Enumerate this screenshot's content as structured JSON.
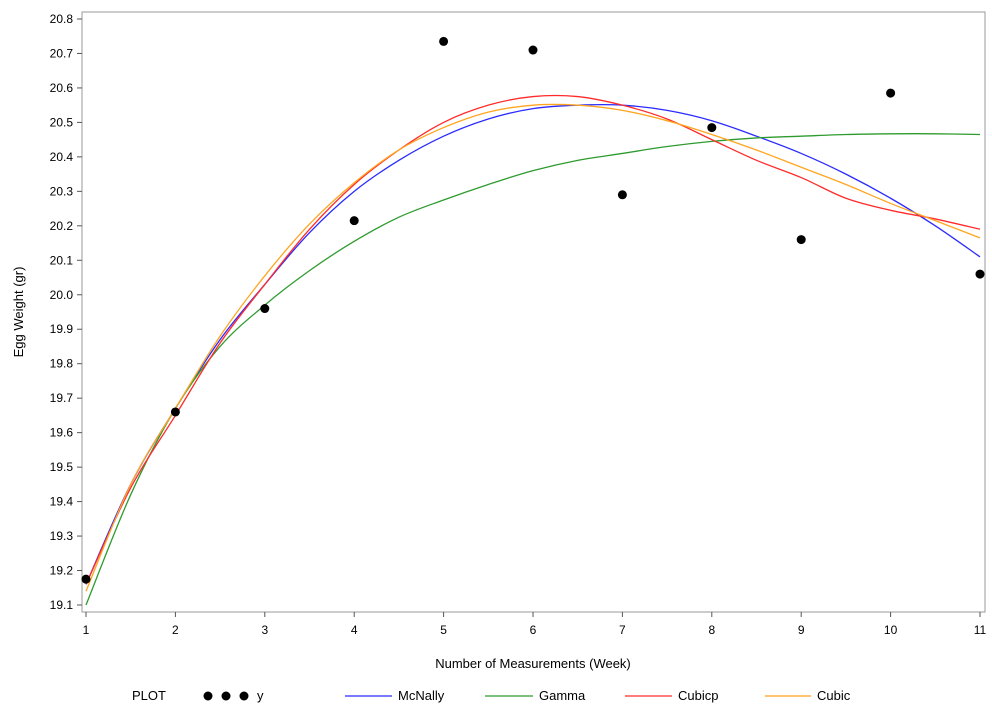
{
  "chart_data": {
    "type": "line",
    "xlabel": "Number of Measurements (Week)",
    "ylabel": "Egg Weight (gr)",
    "xlim": [
      1,
      11
    ],
    "ylim": [
      19.1,
      20.8
    ],
    "x_ticks": [
      "1",
      "2",
      "3",
      "4",
      "5",
      "6",
      "7",
      "8",
      "9",
      "10",
      "11"
    ],
    "y_ticks": [
      "19.1",
      "19.2",
      "19.3",
      "19.4",
      "19.5",
      "19.6",
      "19.7",
      "19.8",
      "19.9",
      "20.0",
      "20.1",
      "20.2",
      "20.3",
      "20.4",
      "20.5",
      "20.6",
      "20.7",
      "20.8"
    ],
    "grid": false,
    "legend": {
      "title": "PLOT",
      "placement": "bottom"
    },
    "points": {
      "name": "y",
      "color": "#000000",
      "x": [
        1,
        2,
        3,
        4,
        5,
        6,
        7,
        8,
        9,
        10,
        11
      ],
      "y": [
        19.175,
        19.66,
        19.96,
        20.215,
        20.735,
        20.71,
        20.29,
        20.485,
        20.16,
        20.585,
        20.06
      ]
    },
    "series": [
      {
        "name": "McNally",
        "color": "#2b2bff",
        "x": [
          1,
          1.5,
          2,
          2.5,
          3,
          3.5,
          4,
          4.5,
          5,
          5.5,
          6,
          6.5,
          7,
          7.5,
          8,
          8.5,
          9,
          9.5,
          10,
          10.5,
          11
        ],
        "y": [
          19.16,
          19.45,
          19.67,
          19.87,
          20.03,
          20.18,
          20.3,
          20.39,
          20.46,
          20.51,
          20.54,
          20.55,
          20.55,
          20.535,
          20.505,
          20.46,
          20.41,
          20.35,
          20.28,
          20.2,
          20.11
        ]
      },
      {
        "name": "Gamma",
        "color": "#2e9b2e",
        "x": [
          1,
          1.5,
          2,
          2.5,
          3,
          3.5,
          4,
          4.5,
          5,
          5.5,
          6,
          6.5,
          7,
          7.5,
          8,
          8.5,
          9,
          9.5,
          10,
          10.5,
          11
        ],
        "y": [
          19.1,
          19.42,
          19.67,
          19.85,
          19.97,
          20.07,
          20.155,
          20.225,
          20.275,
          20.32,
          20.36,
          20.39,
          20.41,
          20.43,
          20.445,
          20.455,
          20.46,
          20.465,
          20.467,
          20.467,
          20.465
        ]
      },
      {
        "name": "Cubicp",
        "color": "#ff2b2b",
        "x": [
          1,
          1.5,
          2,
          2.5,
          3,
          3.5,
          4,
          4.5,
          5,
          5.5,
          6,
          6.5,
          7,
          7.5,
          8,
          8.5,
          9,
          9.5,
          10,
          10.5,
          11
        ],
        "y": [
          19.16,
          19.44,
          19.65,
          19.86,
          20.03,
          20.19,
          20.32,
          20.42,
          20.5,
          20.55,
          20.575,
          20.575,
          20.55,
          20.51,
          20.45,
          20.39,
          20.34,
          20.28,
          20.245,
          20.22,
          20.19
        ]
      },
      {
        "name": "Cubic",
        "color": "#ffa51f",
        "x": [
          1,
          1.5,
          2,
          2.5,
          3,
          3.5,
          4,
          4.5,
          5,
          5.5,
          6,
          6.5,
          7,
          7.5,
          8,
          8.5,
          9,
          9.5,
          10,
          10.5,
          11
        ],
        "y": [
          19.14,
          19.45,
          19.67,
          19.88,
          20.055,
          20.205,
          20.325,
          20.42,
          20.485,
          20.53,
          20.55,
          20.55,
          20.535,
          20.505,
          20.465,
          20.42,
          20.37,
          20.32,
          20.265,
          20.215,
          20.165
        ]
      }
    ]
  }
}
